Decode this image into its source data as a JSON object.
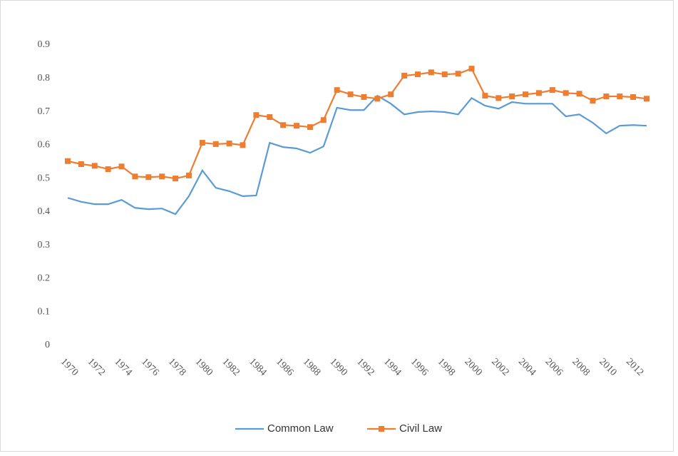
{
  "chart_data": {
    "type": "line",
    "categories": [
      "1970",
      null,
      "1972",
      null,
      "1974",
      null,
      "1976",
      null,
      "1978",
      null,
      "1980",
      null,
      "1982",
      null,
      "1984",
      null,
      "1986",
      null,
      "1988",
      null,
      "1990",
      null,
      "1992",
      null,
      "1994",
      null,
      "1996",
      null,
      "1998",
      null,
      "2000",
      null,
      "2002",
      null,
      "2004",
      null,
      "2006",
      null,
      "2008",
      null,
      "2010",
      null,
      "2012",
      null
    ],
    "series": [
      {
        "name": "Common Law",
        "color": "#5b9bd5",
        "marker": false,
        "values": [
          0.442,
          0.43,
          0.423,
          0.423,
          0.436,
          0.412,
          0.408,
          0.41,
          0.393,
          0.447,
          0.524,
          0.472,
          0.462,
          0.447,
          0.449,
          0.607,
          0.594,
          0.59,
          0.577,
          0.596,
          0.712,
          0.705,
          0.705,
          0.748,
          0.724,
          0.692,
          0.699,
          0.701,
          0.699,
          0.692,
          0.741,
          0.718,
          0.709,
          0.729,
          0.724,
          0.724,
          0.724,
          0.686,
          0.692,
          0.667,
          0.635,
          0.658,
          0.66,
          0.658
        ]
      },
      {
        "name": "Civil Law",
        "color": "#ed7d31",
        "marker": true,
        "values": [
          0.552,
          0.543,
          0.538,
          0.528,
          0.536,
          0.506,
          0.504,
          0.506,
          0.5,
          0.509,
          0.607,
          0.603,
          0.605,
          0.6,
          0.69,
          0.684,
          0.66,
          0.658,
          0.654,
          0.675,
          0.765,
          0.752,
          0.744,
          0.739,
          0.752,
          0.808,
          0.812,
          0.818,
          0.812,
          0.814,
          0.829,
          0.748,
          0.741,
          0.746,
          0.752,
          0.756,
          0.765,
          0.756,
          0.754,
          0.733,
          0.746,
          0.746,
          0.744,
          0.739
        ]
      }
    ],
    "ylim": [
      0,
      0.9
    ],
    "yticks": [
      0,
      0.1,
      0.2,
      0.3,
      0.4,
      0.5,
      0.6,
      0.7,
      0.8,
      0.9
    ],
    "grid": false,
    "legend": "bottom"
  }
}
